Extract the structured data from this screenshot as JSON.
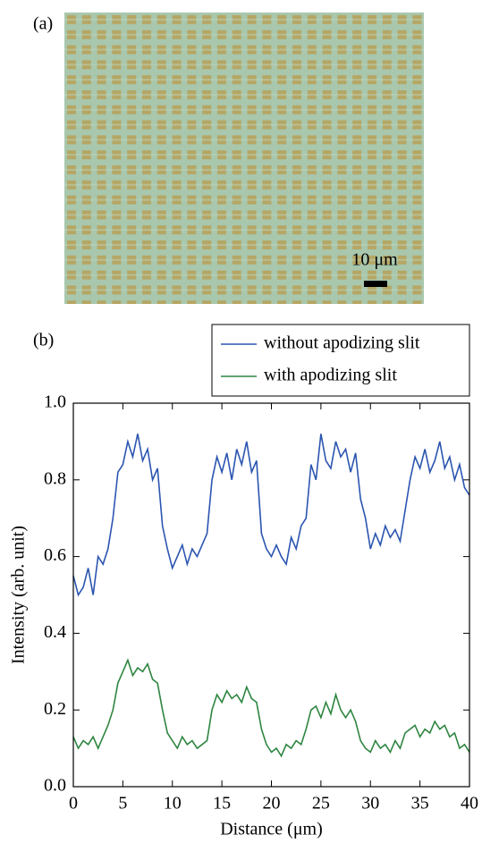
{
  "figure": {
    "panel_a_label": "(a)",
    "panel_b_label": "(b)",
    "scale_bar_label": "10 μm"
  },
  "chart_data": {
    "type": "line",
    "xlabel": "Distance (μm)",
    "ylabel": "Intensity (arb. unit)",
    "x": [
      0,
      0.5,
      1,
      1.5,
      2,
      2.5,
      3,
      3.5,
      4,
      4.5,
      5,
      5.5,
      6,
      6.5,
      7,
      7.5,
      8,
      8.5,
      9,
      9.5,
      10,
      10.5,
      11,
      11.5,
      12,
      12.5,
      13,
      13.5,
      14,
      14.5,
      15,
      15.5,
      16,
      16.5,
      17,
      17.5,
      18,
      18.5,
      19,
      19.5,
      20,
      20.5,
      21,
      21.5,
      22,
      22.5,
      23,
      23.5,
      24,
      24.5,
      25,
      25.5,
      26,
      26.5,
      27,
      27.5,
      28,
      28.5,
      29,
      29.5,
      30,
      30.5,
      31,
      31.5,
      32,
      32.5,
      33,
      33.5,
      34,
      34.5,
      35,
      35.5,
      36,
      36.5,
      37,
      37.5,
      38,
      38.5,
      39,
      39.5,
      40
    ],
    "series": [
      {
        "name": "without apodizing slit",
        "color": "#2b55b0",
        "values": [
          0.55,
          0.5,
          0.52,
          0.57,
          0.5,
          0.6,
          0.58,
          0.62,
          0.7,
          0.82,
          0.84,
          0.9,
          0.86,
          0.92,
          0.85,
          0.88,
          0.8,
          0.83,
          0.68,
          0.62,
          0.57,
          0.6,
          0.63,
          0.58,
          0.62,
          0.6,
          0.63,
          0.66,
          0.8,
          0.86,
          0.82,
          0.87,
          0.8,
          0.88,
          0.84,
          0.9,
          0.82,
          0.85,
          0.66,
          0.62,
          0.6,
          0.63,
          0.6,
          0.58,
          0.65,
          0.62,
          0.68,
          0.7,
          0.84,
          0.8,
          0.92,
          0.85,
          0.83,
          0.9,
          0.86,
          0.88,
          0.82,
          0.87,
          0.75,
          0.7,
          0.62,
          0.66,
          0.63,
          0.68,
          0.65,
          0.67,
          0.64,
          0.72,
          0.8,
          0.86,
          0.83,
          0.88,
          0.82,
          0.85,
          0.9,
          0.83,
          0.86,
          0.8,
          0.84,
          0.78,
          0.76
        ]
      },
      {
        "name": "with apodizing slit",
        "color": "#2e8540",
        "values": [
          0.13,
          0.1,
          0.12,
          0.11,
          0.13,
          0.1,
          0.13,
          0.16,
          0.2,
          0.27,
          0.3,
          0.33,
          0.29,
          0.31,
          0.3,
          0.32,
          0.28,
          0.27,
          0.2,
          0.14,
          0.12,
          0.1,
          0.13,
          0.11,
          0.12,
          0.1,
          0.11,
          0.12,
          0.2,
          0.24,
          0.22,
          0.25,
          0.23,
          0.24,
          0.22,
          0.26,
          0.23,
          0.22,
          0.15,
          0.11,
          0.09,
          0.1,
          0.08,
          0.11,
          0.1,
          0.12,
          0.11,
          0.15,
          0.2,
          0.21,
          0.18,
          0.22,
          0.19,
          0.24,
          0.2,
          0.18,
          0.2,
          0.17,
          0.12,
          0.1,
          0.09,
          0.12,
          0.1,
          0.11,
          0.09,
          0.12,
          0.1,
          0.14,
          0.15,
          0.16,
          0.13,
          0.15,
          0.14,
          0.17,
          0.15,
          0.16,
          0.13,
          0.14,
          0.1,
          0.11,
          0.09
        ]
      }
    ],
    "xlim": [
      0,
      40
    ],
    "xticks": [
      0,
      5,
      10,
      15,
      20,
      25,
      30,
      35,
      40
    ],
    "ylim": [
      0,
      1
    ],
    "yticks": [
      {
        "value": 0,
        "label": "0.0"
      },
      0.2,
      0.4,
      0.6,
      0.8,
      {
        "value": 1,
        "label": "1.0"
      }
    ],
    "legend": "top-right"
  }
}
